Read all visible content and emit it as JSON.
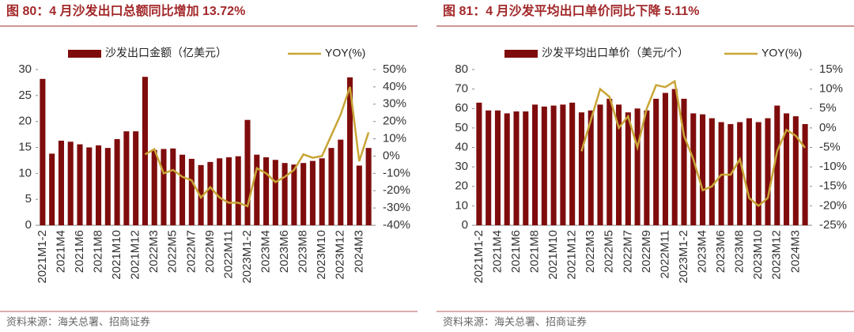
{
  "chart_data": [
    {
      "type": "bar",
      "title": "图 80：4 月沙发出口总额同比增加 13.72%",
      "source": "资料来源：海关总署、招商证券",
      "categories": [
        "2021M1-2",
        null,
        "2021M4",
        null,
        "2021M6",
        null,
        "2021M8",
        null,
        "2021M10",
        null,
        "2021M12",
        null,
        "2022M3",
        null,
        "2022M5",
        null,
        "2022M7",
        null,
        "2022M9",
        null,
        "2022M11",
        null,
        "2023M1-2",
        null,
        "2023M4",
        null,
        "2023M6",
        null,
        "2023M8",
        null,
        "2023M10",
        null,
        "2023M12",
        null,
        "2024M3",
        null
      ],
      "series": [
        {
          "name": "沙发出口金额（亿美元）",
          "type": "bar",
          "color": "#7f0c0c",
          "values": [
            28.2,
            13.8,
            16.3,
            16.1,
            15.6,
            15.0,
            15.4,
            14.9,
            16.6,
            18.1,
            18.1,
            28.6,
            14.5,
            14.7,
            14.8,
            13.6,
            12.8,
            11.6,
            12.2,
            12.9,
            13.1,
            13.3,
            20.3,
            13.6,
            13.1,
            12.6,
            12.0,
            11.7,
            12.0,
            12.4,
            12.9,
            14.9,
            16.5,
            28.5,
            11.5,
            14.9
          ]
        },
        {
          "name": "YOY(%)",
          "type": "line",
          "axis": "y2",
          "color": "#c8a536",
          "values": [
            null,
            null,
            null,
            null,
            null,
            null,
            null,
            null,
            null,
            null,
            null,
            1,
            4,
            -10,
            -8,
            -12,
            -14,
            -24,
            -18,
            -24,
            -27,
            -27,
            -29,
            -7,
            -10,
            -15,
            -12,
            -8,
            1,
            -1,
            0,
            12,
            24,
            40,
            -3,
            13.72
          ]
        }
      ],
      "ylim": [
        0,
        30
      ],
      "yticks": [
        0,
        5,
        10,
        15,
        20,
        25,
        30
      ],
      "y2lim": [
        -40,
        50
      ],
      "y2ticks": [
        {
          "value": -40,
          "label": "-40%"
        },
        {
          "value": -30,
          "label": "-30%"
        },
        {
          "value": -20,
          "label": "-20%"
        },
        {
          "value": -10,
          "label": "-10%"
        },
        {
          "value": 0,
          "label": "0%"
        },
        {
          "value": 10,
          "label": "10%"
        },
        {
          "value": 20,
          "label": "20%"
        },
        {
          "value": 30,
          "label": "30%"
        },
        {
          "value": 40,
          "label": "40%"
        },
        {
          "value": 50,
          "label": "50%"
        }
      ]
    },
    {
      "type": "bar",
      "title": "图 81：4 月沙发平均出口单价同比下降 5.11%",
      "source": "资料来源：海关总署、招商证券",
      "categories": [
        "2021M1-2",
        null,
        "2021M4",
        null,
        "2021M6",
        null,
        "2021M8",
        null,
        "2021M10",
        null,
        "2021M12",
        null,
        "2022M3",
        null,
        "2022M5",
        null,
        "2022M7",
        null,
        "2022M9",
        null,
        "2022M11",
        null,
        "2023M1-2",
        null,
        "2023M4",
        null,
        "2023M6",
        null,
        "2023M8",
        null,
        "2023M10",
        null,
        "2023M12",
        null,
        "2024M3",
        null
      ],
      "series": [
        {
          "name": "沙发平均出口单价（美元/个）",
          "type": "bar",
          "color": "#7f0c0c",
          "values": [
            63,
            59,
            59,
            57.5,
            58.5,
            58.5,
            62,
            61,
            61.5,
            62,
            63,
            58,
            59,
            62,
            65,
            62,
            58,
            60,
            59,
            65,
            68,
            70,
            65,
            57.5,
            57,
            55,
            53,
            52,
            53,
            55,
            53,
            55,
            61.5,
            57.5,
            56,
            52
          ]
        },
        {
          "name": "YOY(%)",
          "type": "line",
          "axis": "y2",
          "color": "#c8a536",
          "values": [
            null,
            null,
            null,
            null,
            null,
            null,
            null,
            null,
            null,
            null,
            null,
            -6,
            2,
            10,
            8,
            0,
            3,
            -5,
            5,
            11,
            10.5,
            12,
            -2,
            -8,
            -16,
            -15,
            -12,
            -12,
            -8,
            -18,
            -20,
            -18,
            -6,
            -0.5,
            -2,
            -5.11
          ]
        }
      ],
      "ylim": [
        0,
        80
      ],
      "yticks": [
        0,
        10,
        20,
        30,
        40,
        50,
        60,
        70,
        80
      ],
      "y2lim": [
        -25,
        15
      ],
      "y2ticks": [
        {
          "value": -25,
          "label": "-25%"
        },
        {
          "value": -20,
          "label": "-20%"
        },
        {
          "value": -15,
          "label": "-15%"
        },
        {
          "value": -10,
          "label": "-10%"
        },
        {
          "value": -5,
          "label": "-5%"
        },
        {
          "value": 0,
          "label": "0%"
        },
        {
          "value": 5,
          "label": "5%"
        },
        {
          "value": 10,
          "label": "10%"
        },
        {
          "value": 15,
          "label": "15%"
        }
      ]
    }
  ]
}
